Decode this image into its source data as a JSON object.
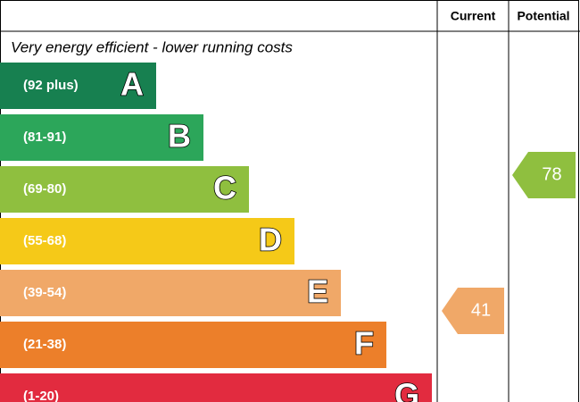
{
  "header": {
    "current": "Current",
    "potential": "Potential"
  },
  "caption": "Very energy efficient - lower running costs",
  "bands": [
    {
      "range": "(92 plus)",
      "letter": "A",
      "color": "#178050"
    },
    {
      "range": "(81-91)",
      "letter": "B",
      "color": "#2ca65a"
    },
    {
      "range": "(69-80)",
      "letter": "C",
      "color": "#8fbf3f"
    },
    {
      "range": "(55-68)",
      "letter": "D",
      "color": "#f5c918"
    },
    {
      "range": "(39-54)",
      "letter": "E",
      "color": "#f0a868"
    },
    {
      "range": "(21-38)",
      "letter": "F",
      "color": "#ec7f2a"
    },
    {
      "range": "(1-20)",
      "letter": "G",
      "color": "#e22b3f"
    }
  ],
  "current": {
    "value": 41,
    "color": "#f0a868"
  },
  "potential": {
    "value": 78,
    "color": "#8fbf3f"
  }
}
